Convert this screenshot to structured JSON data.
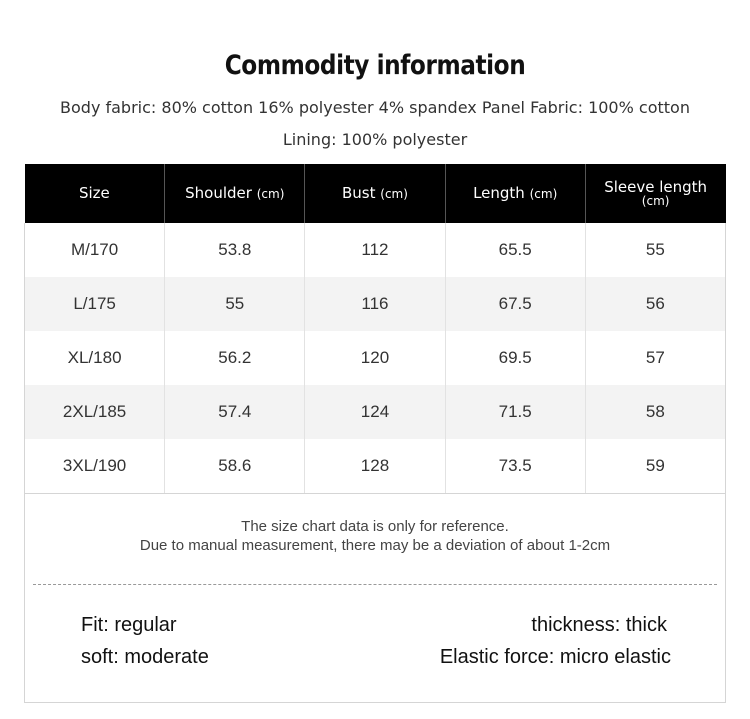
{
  "header": {
    "title": "Commodity information",
    "fabric_line": "Body fabric: 80% cotton 16% polyester 4% spandex Panel Fabric: 100% cotton",
    "lining_line": "Lining: 100% polyester"
  },
  "table": {
    "headers": [
      {
        "label": "Size",
        "unit": ""
      },
      {
        "label": "Shoulder",
        "unit": "(cm)"
      },
      {
        "label": "Bust",
        "unit": "(cm)"
      },
      {
        "label": "Length",
        "unit": "(cm)"
      },
      {
        "label": "Sleeve length",
        "unit": "(cm)"
      }
    ],
    "rows": [
      [
        "M/170",
        "53.8",
        "112",
        "65.5",
        "55"
      ],
      [
        "L/175",
        "55",
        "116",
        "67.5",
        "56"
      ],
      [
        "XL/180",
        "56.2",
        "120",
        "69.5",
        "57"
      ],
      [
        "2XL/185",
        "57.4",
        "124",
        "71.5",
        "58"
      ],
      [
        "3XL/190",
        "58.6",
        "128",
        "73.5",
        "59"
      ]
    ]
  },
  "notes": {
    "line1": "The size chart data is only for reference.",
    "line2": "Due to manual measurement, there may be a deviation of about 1-2cm"
  },
  "attributes": {
    "fit": "Fit: regular",
    "soft": "soft: moderate",
    "thickness": "thickness: thick",
    "elastic": "Elastic force: micro elastic"
  }
}
